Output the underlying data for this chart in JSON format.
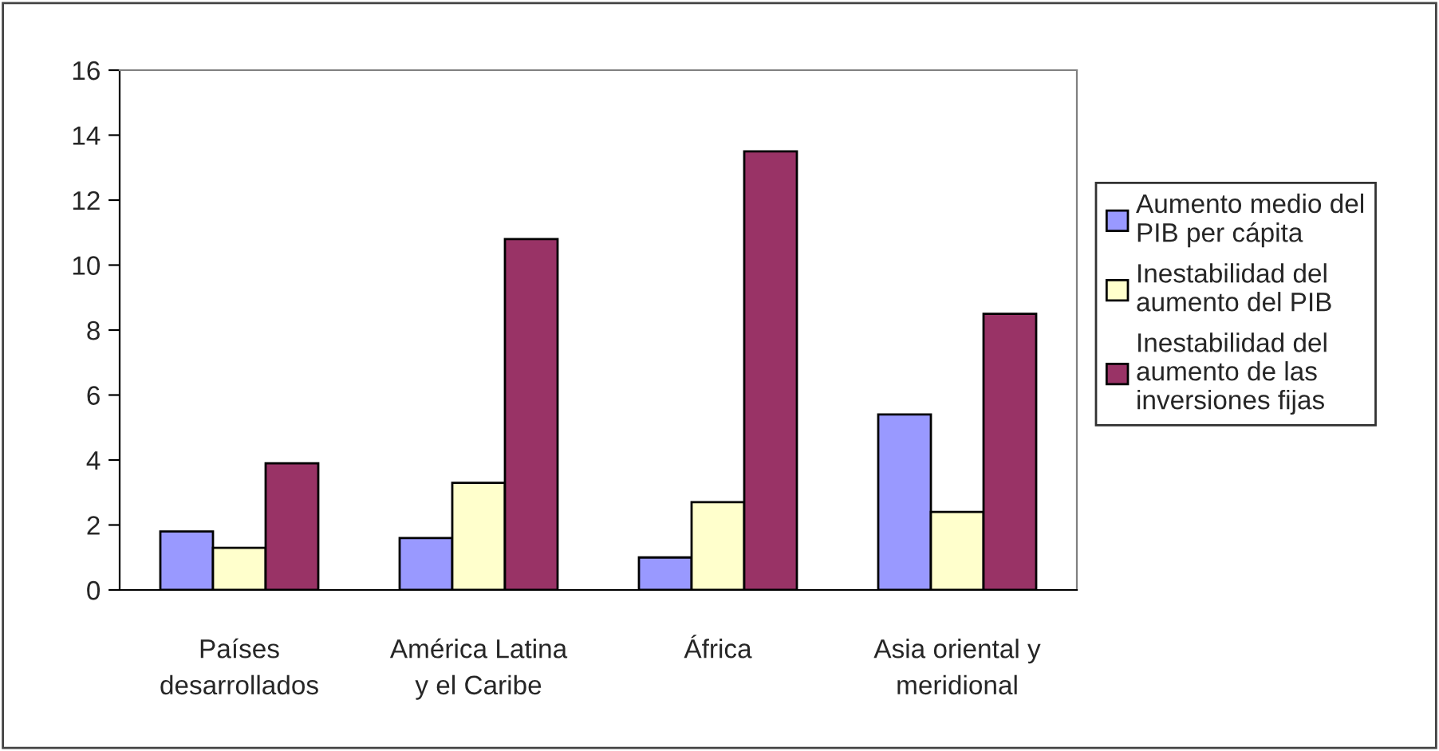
{
  "chart_data": {
    "type": "bar",
    "categories": [
      "Países\ndesarrollados",
      "América Latina\ny el Caribe",
      "África",
      "Asia oriental y\nmeridional"
    ],
    "series": [
      {
        "name": "Aumento medio del\nPIB per cápita",
        "color": "#9999ff",
        "values": [
          1.8,
          1.6,
          1.0,
          5.4
        ]
      },
      {
        "name": "Inestabilidad del\naumento del PIB",
        "color": "#ffffcc",
        "values": [
          1.3,
          3.3,
          2.7,
          2.4
        ]
      },
      {
        "name": "Inestabilidad del\naumento de las\ninversiones fijas",
        "color": "#993366",
        "values": [
          3.9,
          10.8,
          13.5,
          8.5
        ]
      }
    ],
    "ylim": [
      0,
      16
    ],
    "yticks": [
      0,
      2,
      4,
      6,
      8,
      10,
      12,
      14,
      16
    ],
    "grid": false,
    "legend": "right"
  }
}
